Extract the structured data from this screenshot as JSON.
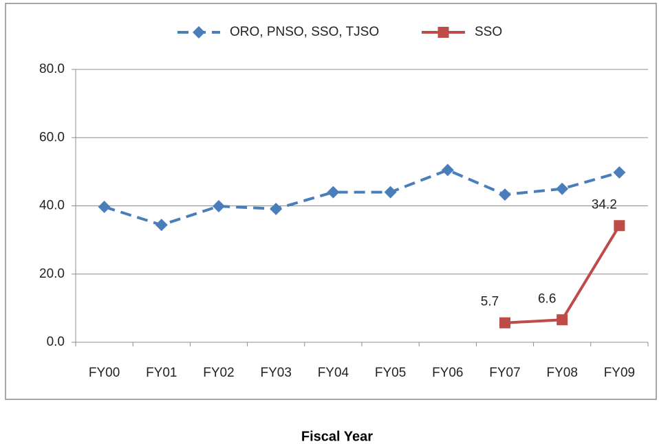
{
  "chart_data": {
    "type": "line",
    "x_label": "Fiscal Year",
    "categories": [
      "FY00",
      "FY01",
      "FY02",
      "FY03",
      "FY04",
      "FY05",
      "FY06",
      "FY07",
      "FY08",
      "FY09"
    ],
    "series": [
      {
        "name": "ORO, PNSO, SSO, TJSO",
        "color": "#4a7ebb",
        "dashed": true,
        "marker": "diamond",
        "values": [
          39.7,
          34.4,
          39.9,
          39.1,
          44.0,
          44.0,
          50.5,
          43.3,
          45.0,
          49.8
        ]
      },
      {
        "name": "SSO",
        "color": "#be4b48",
        "dashed": false,
        "marker": "square",
        "show_labels": true,
        "values": [
          null,
          null,
          null,
          null,
          null,
          null,
          null,
          5.7,
          6.6,
          34.2
        ]
      }
    ],
    "ylim": [
      0,
      80
    ],
    "yticks": [
      {
        "value": 0,
        "label": "0.0"
      },
      {
        "value": 20,
        "label": "20.0"
      },
      {
        "value": 40,
        "label": "40.0"
      },
      {
        "value": 60,
        "label": "60.0"
      },
      {
        "value": 80,
        "label": "80.0"
      }
    ],
    "grid": true,
    "legend": "top"
  }
}
